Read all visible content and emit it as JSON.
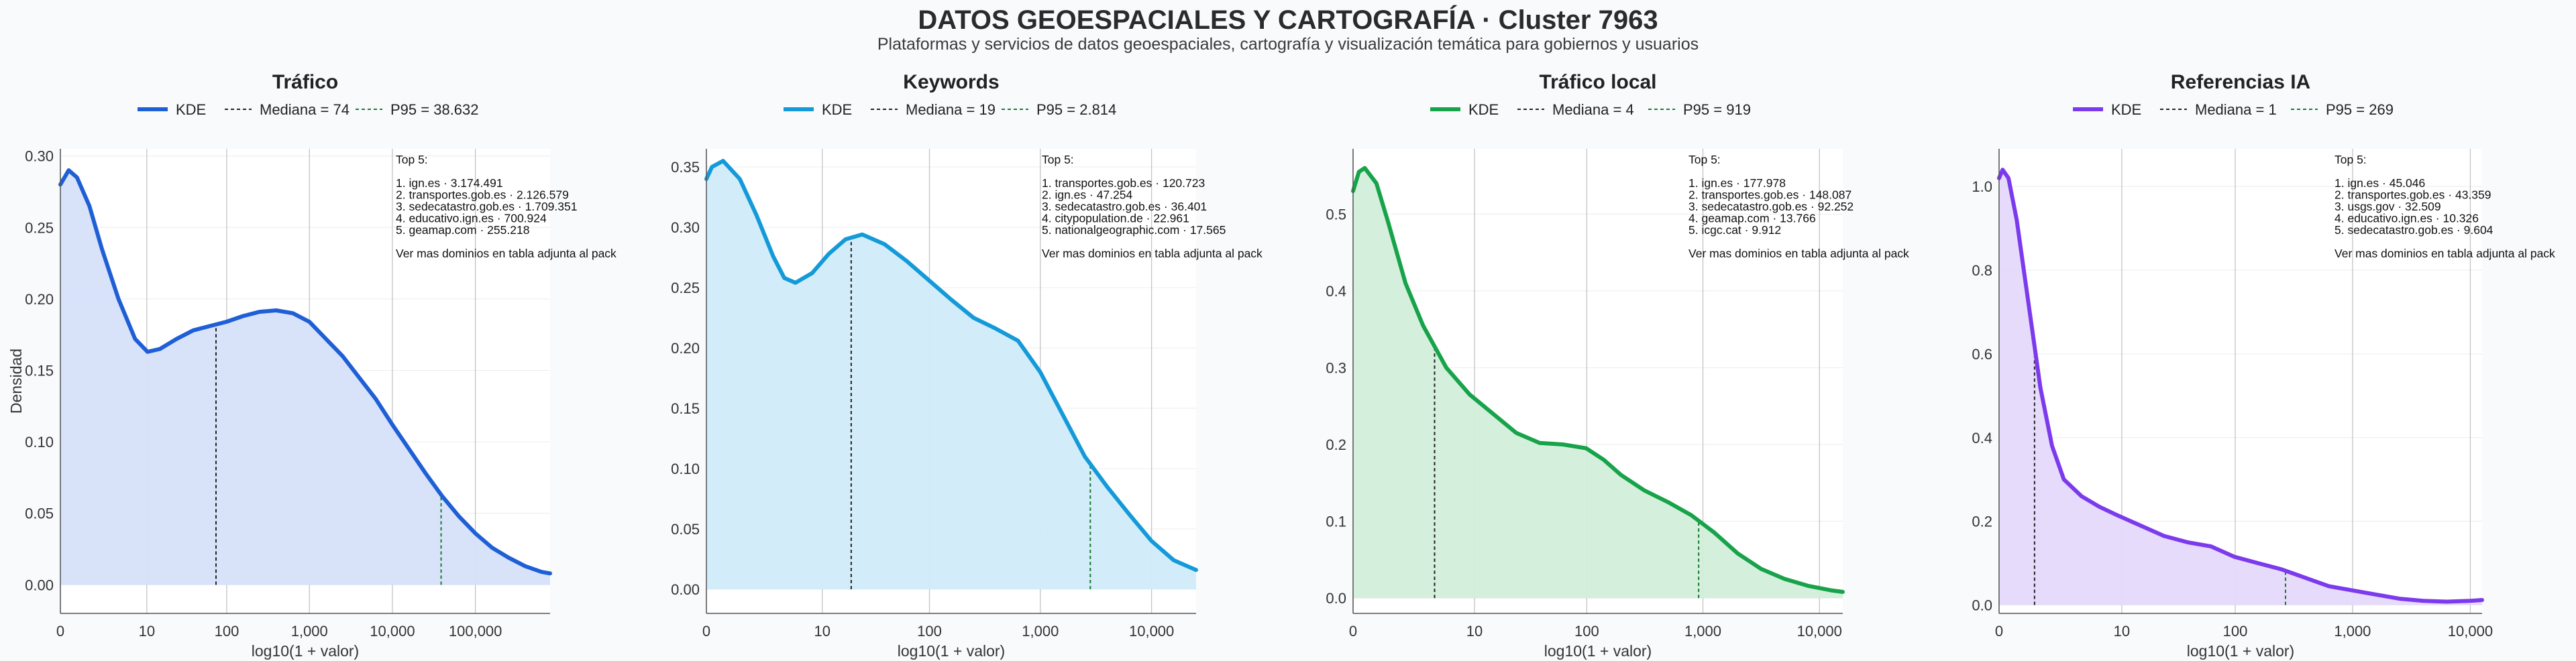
{
  "title": "DATOS GEOESPACIALES Y CARTOGRAFÍA · Cluster 7963",
  "subtitle": "Plataformas y servicios de datos geoespaciales, cartografía y visualización temática para gobiernos y usuarios",
  "chart_data": [
    {
      "type": "area",
      "title": "Tráfico",
      "xlabel": "log10(1 + valor)",
      "ylabel": "Densidad",
      "color": "#1f5fd6",
      "fill": "#d6e2fa",
      "xlim": [
        0,
        5.9
      ],
      "ylim": [
        -0.02,
        0.305
      ],
      "xticks": [
        {
          "v": 0,
          "label": "0"
        },
        {
          "v": 1.0414,
          "label": "10"
        },
        {
          "v": 2.0043,
          "label": "100"
        },
        {
          "v": 3.0004,
          "label": "1,000"
        },
        {
          "v": 4.0,
          "label": "10,000"
        },
        {
          "v": 5.0,
          "label": "100,000"
        }
      ],
      "yticks": [
        {
          "v": 0,
          "label": "0.00"
        },
        {
          "v": 0.05,
          "label": "0.05"
        },
        {
          "v": 0.1,
          "label": "0.10"
        },
        {
          "v": 0.15,
          "label": "0.15"
        },
        {
          "v": 0.2,
          "label": "0.20"
        },
        {
          "v": 0.25,
          "label": "0.25"
        },
        {
          "v": 0.3,
          "label": "0.30"
        }
      ],
      "x": [
        0,
        0.1,
        0.2,
        0.35,
        0.5,
        0.7,
        0.9,
        1.05,
        1.2,
        1.4,
        1.6,
        1.8,
        2.0,
        2.2,
        2.4,
        2.6,
        2.8,
        3.0,
        3.2,
        3.4,
        3.6,
        3.8,
        4.0,
        4.2,
        4.4,
        4.6,
        4.8,
        5.0,
        5.2,
        5.4,
        5.6,
        5.8,
        5.9
      ],
      "y": [
        0.28,
        0.29,
        0.285,
        0.265,
        0.235,
        0.2,
        0.172,
        0.163,
        0.165,
        0.172,
        0.178,
        0.181,
        0.184,
        0.188,
        0.191,
        0.192,
        0.19,
        0.184,
        0.172,
        0.16,
        0.145,
        0.13,
        0.112,
        0.095,
        0.078,
        0.062,
        0.048,
        0.036,
        0.026,
        0.019,
        0.013,
        0.009,
        0.008
      ],
      "legend": {
        "kde": "KDE",
        "median": "Mediana = 74",
        "p95": "P95 = 38.632"
      },
      "median_x": 1.8751,
      "p95_x": 4.587,
      "top5": [
        "Top 5:",
        "",
        "1. ign.es · 3.174.491",
        "2. transportes.gob.es · 2.126.579",
        "3. sedecatastro.gob.es · 1.709.351",
        "4. educativo.ign.es · 700.924",
        "5. geamap.com · 255.218",
        "",
        "Ver mas dominios en tabla adjunta al pack"
      ]
    },
    {
      "type": "area",
      "title": "Keywords",
      "xlabel": "log10(1 + valor)",
      "ylabel": "",
      "color": "#149ad8",
      "fill": "#d0ecf9",
      "xlim": [
        0,
        4.4
      ],
      "ylim": [
        -0.02,
        0.365
      ],
      "xticks": [
        {
          "v": 0,
          "label": "0"
        },
        {
          "v": 1.0414,
          "label": "10"
        },
        {
          "v": 2.0043,
          "label": "100"
        },
        {
          "v": 3.0004,
          "label": "1,000"
        },
        {
          "v": 4.0,
          "label": "10,000"
        }
      ],
      "yticks": [
        {
          "v": 0,
          "label": "0.00"
        },
        {
          "v": 0.05,
          "label": "0.05"
        },
        {
          "v": 0.1,
          "label": "0.10"
        },
        {
          "v": 0.15,
          "label": "0.15"
        },
        {
          "v": 0.2,
          "label": "0.20"
        },
        {
          "v": 0.25,
          "label": "0.25"
        },
        {
          "v": 0.3,
          "label": "0.30"
        },
        {
          "v": 0.35,
          "label": "0.35"
        }
      ],
      "x": [
        0,
        0.05,
        0.15,
        0.3,
        0.45,
        0.6,
        0.7,
        0.8,
        0.95,
        1.1,
        1.25,
        1.4,
        1.6,
        1.8,
        2.0,
        2.2,
        2.4,
        2.6,
        2.8,
        3.0,
        3.2,
        3.4,
        3.6,
        3.8,
        4.0,
        4.2,
        4.4
      ],
      "y": [
        0.34,
        0.35,
        0.355,
        0.34,
        0.31,
        0.276,
        0.258,
        0.254,
        0.262,
        0.278,
        0.29,
        0.294,
        0.286,
        0.272,
        0.256,
        0.24,
        0.225,
        0.216,
        0.206,
        0.18,
        0.145,
        0.11,
        0.085,
        0.062,
        0.04,
        0.024,
        0.016
      ],
      "legend": {
        "kde": "KDE",
        "median": "Mediana = 19",
        "p95": "P95 = 2.814"
      },
      "median_x": 1.301,
      "p95_x": 3.4495,
      "top5": [
        "Top 5:",
        "",
        "1. transportes.gob.es · 120.723",
        "2. ign.es · 47.254",
        "3. sedecatastro.gob.es · 36.401",
        "4. citypopulation.de · 22.961",
        "5. nationalgeographic.com · 17.565",
        "",
        "Ver mas dominios en tabla adjunta al pack"
      ]
    },
    {
      "type": "area",
      "title": "Tráfico local",
      "xlabel": "log10(1 + valor)",
      "ylabel": "",
      "color": "#17a34a",
      "fill": "#d3eedb",
      "xlim": [
        0,
        4.2
      ],
      "ylim": [
        -0.02,
        0.585
      ],
      "xticks": [
        {
          "v": 0,
          "label": "0"
        },
        {
          "v": 1.0414,
          "label": "10"
        },
        {
          "v": 2.0043,
          "label": "100"
        },
        {
          "v": 3.0004,
          "label": "1,000"
        },
        {
          "v": 4.0,
          "label": "10,000"
        }
      ],
      "yticks": [
        {
          "v": 0,
          "label": "0.0"
        },
        {
          "v": 0.1,
          "label": "0.1"
        },
        {
          "v": 0.2,
          "label": "0.2"
        },
        {
          "v": 0.3,
          "label": "0.3"
        },
        {
          "v": 0.4,
          "label": "0.4"
        },
        {
          "v": 0.5,
          "label": "0.5"
        }
      ],
      "x": [
        0,
        0.05,
        0.1,
        0.2,
        0.3,
        0.45,
        0.6,
        0.8,
        1.0,
        1.2,
        1.4,
        1.6,
        1.8,
        2.0,
        2.15,
        2.3,
        2.5,
        2.7,
        2.9,
        3.1,
        3.3,
        3.5,
        3.7,
        3.9,
        4.1,
        4.2
      ],
      "y": [
        0.53,
        0.555,
        0.56,
        0.54,
        0.49,
        0.41,
        0.355,
        0.3,
        0.265,
        0.24,
        0.215,
        0.202,
        0.2,
        0.195,
        0.18,
        0.16,
        0.14,
        0.125,
        0.108,
        0.085,
        0.058,
        0.038,
        0.025,
        0.016,
        0.01,
        0.008
      ],
      "legend": {
        "kde": "KDE",
        "median": "Mediana = 4",
        "p95": "P95 = 919"
      },
      "median_x": 0.699,
      "p95_x": 2.9638,
      "top5": [
        "Top 5:",
        "",
        "1. ign.es · 177.978",
        "2. transportes.gob.es · 148.087",
        "3. sedecatastro.gob.es · 92.252",
        "4. geamap.com · 13.766",
        "5. icgc.cat · 9.912",
        "",
        "Ver mas dominios en tabla adjunta al pack"
      ]
    },
    {
      "type": "area",
      "title": "Referencias IA",
      "xlabel": "log10(1 + valor)",
      "ylabel": "",
      "color": "#7c3aed",
      "fill": "#e5d9fb",
      "xlim": [
        0,
        4.1
      ],
      "ylim": [
        -0.02,
        1.09
      ],
      "xticks": [
        {
          "v": 0,
          "label": "0"
        },
        {
          "v": 1.0414,
          "label": "10"
        },
        {
          "v": 2.0043,
          "label": "100"
        },
        {
          "v": 3.0004,
          "label": "1,000"
        },
        {
          "v": 4.0,
          "label": "10,000"
        }
      ],
      "yticks": [
        {
          "v": 0,
          "label": "0.0"
        },
        {
          "v": 0.2,
          "label": "0.2"
        },
        {
          "v": 0.4,
          "label": "0.4"
        },
        {
          "v": 0.6,
          "label": "0.6"
        },
        {
          "v": 0.8,
          "label": "0.8"
        },
        {
          "v": 1.0,
          "label": "1.0"
        }
      ],
      "x": [
        0,
        0.03,
        0.08,
        0.15,
        0.25,
        0.35,
        0.45,
        0.55,
        0.7,
        0.85,
        1.0,
        1.2,
        1.4,
        1.6,
        1.8,
        2.0,
        2.2,
        2.4,
        2.6,
        2.8,
        3.0,
        3.2,
        3.4,
        3.6,
        3.8,
        4.0,
        4.1
      ],
      "y": [
        1.02,
        1.04,
        1.02,
        0.92,
        0.72,
        0.52,
        0.38,
        0.3,
        0.26,
        0.235,
        0.215,
        0.19,
        0.165,
        0.15,
        0.14,
        0.115,
        0.1,
        0.085,
        0.065,
        0.045,
        0.035,
        0.025,
        0.015,
        0.01,
        0.008,
        0.01,
        0.012
      ],
      "legend": {
        "kde": "KDE",
        "median": "Mediana = 1",
        "p95": "P95 = 269"
      },
      "median_x": 0.301,
      "p95_x": 2.4314,
      "top5": [
        "Top 5:",
        "",
        "1. ign.es · 45.046",
        "2. transportes.gob.es · 43.359",
        "3. usgs.gov · 32.509",
        "4. educativo.ign.es · 10.326",
        "5. sedecatastro.gob.es · 9.604",
        "",
        "Ver mas dominios en tabla adjunta al pack"
      ]
    }
  ]
}
